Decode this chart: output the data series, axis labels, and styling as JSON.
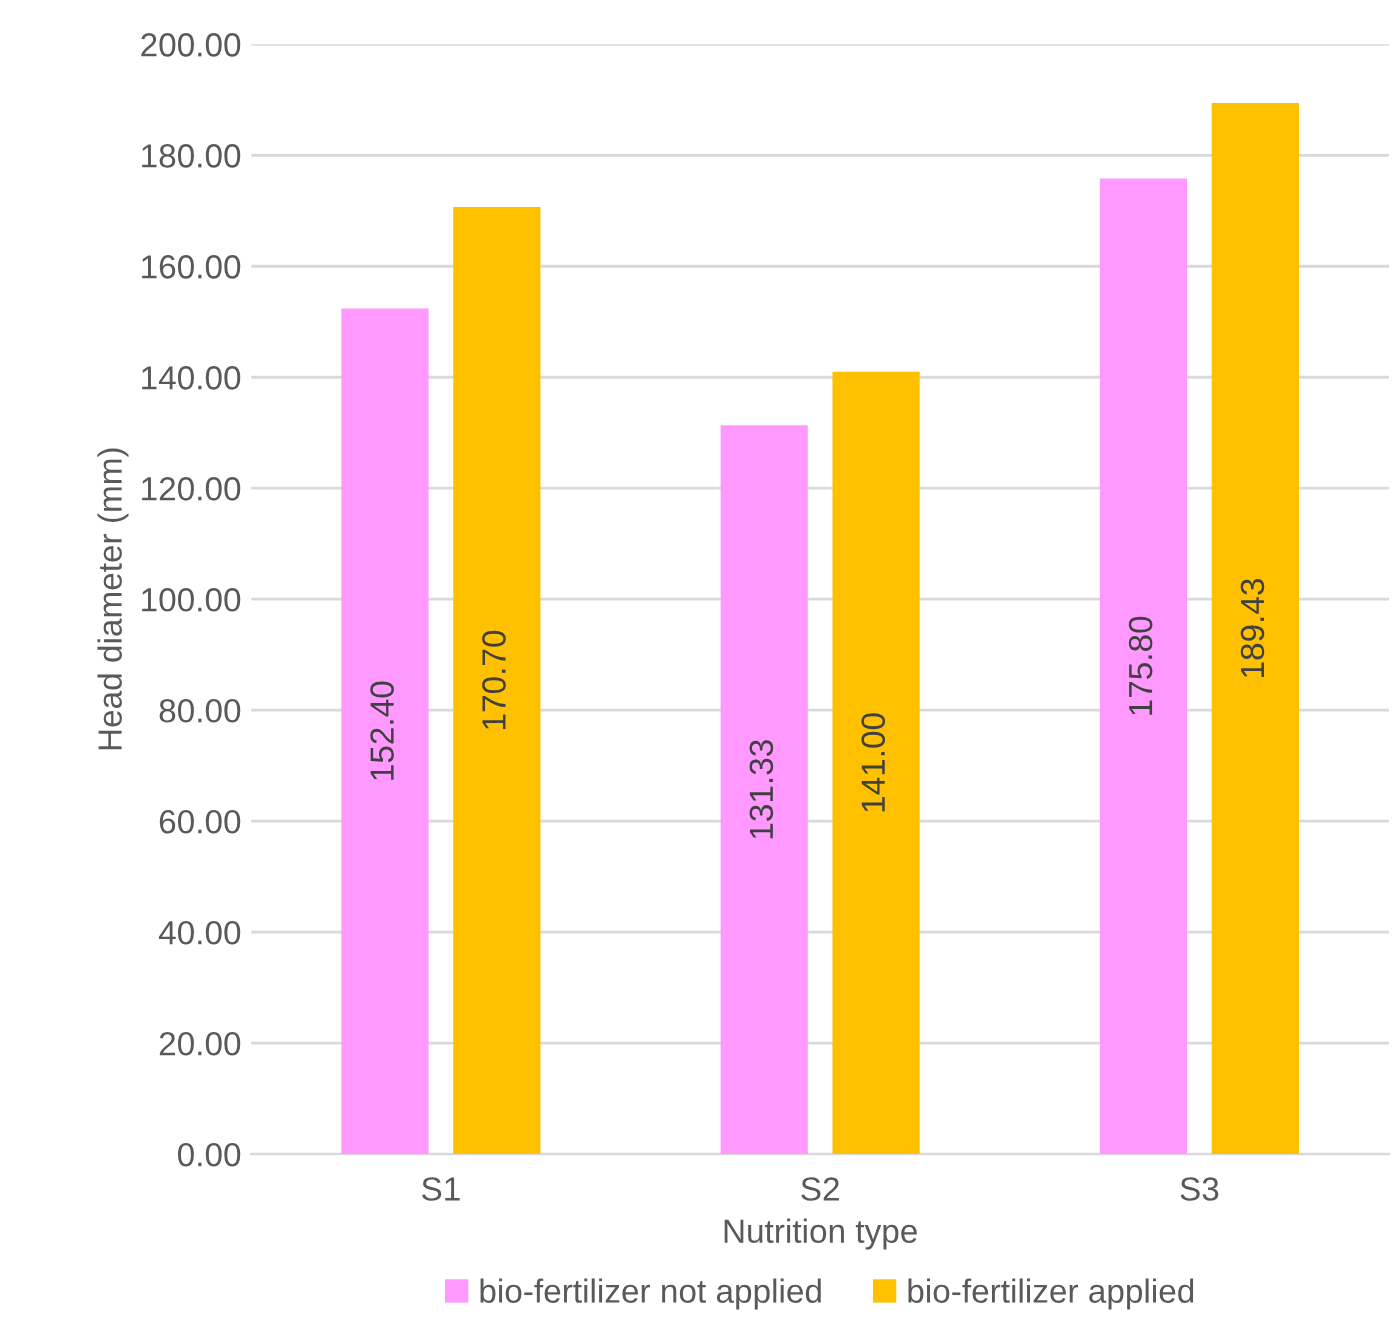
{
  "chart_data": {
    "type": "bar",
    "xlabel": "Nutrition type",
    "ylabel": "Head diameter (mm)",
    "categories": [
      "S1",
      "S2",
      "S3"
    ],
    "series": [
      {
        "name": "bio-fertilizer not applied",
        "color": "#ff99ff",
        "values": [
          152.4,
          131.33,
          175.8
        ],
        "value_labels": [
          "152.40",
          "131.33",
          "175.80"
        ]
      },
      {
        "name": "bio-fertilizer applied",
        "color": "#ffc000",
        "values": [
          170.7,
          141.0,
          189.43
        ],
        "value_labels": [
          "170.70",
          "141.00",
          "189.43"
        ]
      }
    ],
    "ylim": [
      0,
      200
    ],
    "yticks": [
      {
        "value": 0,
        "label": "0.00"
      },
      {
        "value": 20,
        "label": "20.00"
      },
      {
        "value": 40,
        "label": "40.00"
      },
      {
        "value": 60,
        "label": "60.00"
      },
      {
        "value": 80,
        "label": "80.00"
      },
      {
        "value": 100,
        "label": "100.00"
      },
      {
        "value": 120,
        "label": "120.00"
      },
      {
        "value": 140,
        "label": "140.00"
      },
      {
        "value": 160,
        "label": "160.00"
      },
      {
        "value": 180,
        "label": "180.00"
      },
      {
        "value": 200,
        "label": "200.00"
      }
    ],
    "grid": "y",
    "legend": "bottom"
  }
}
